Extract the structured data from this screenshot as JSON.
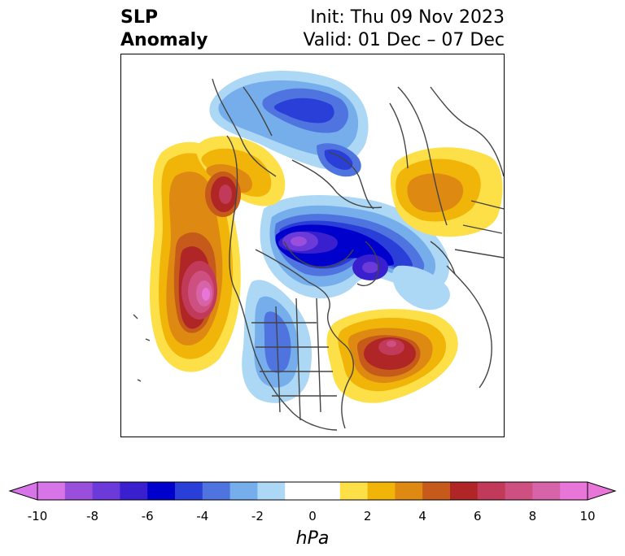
{
  "title": {
    "left_line1": "SLP",
    "left_line2": "Anomaly",
    "right_line1": "Init: Thu 09 Nov 2023",
    "right_line2": "Valid: 01 Dec – 07 Dec"
  },
  "colorbar": {
    "units": "hPa",
    "ticks": [
      "-10",
      "-8",
      "-6",
      "-4",
      "-2",
      "0",
      "2",
      "4",
      "6",
      "8",
      "10"
    ],
    "colors": [
      "#d775e8",
      "#9a4fdc",
      "#6b3ad8",
      "#3a1fcf",
      "#0000cc",
      "#2a3ed8",
      "#4f74e0",
      "#76aeec",
      "#acd8f6",
      "#ffffff",
      "#ffffff",
      "#fde047",
      "#f1b409",
      "#de8a12",
      "#c65a1a",
      "#b02626",
      "#c23a5a",
      "#ce5080",
      "#d764a8",
      "#e875d8"
    ],
    "under_color": "#d775e8",
    "over_color": "#e875d8"
  },
  "map": {
    "features": [
      {
        "name": "low-anomaly-arctic-center",
        "level": "-8 to -10"
      },
      {
        "name": "low-anomaly-north-atlantic",
        "level": "-2 to -6"
      },
      {
        "name": "low-anomaly-north-america",
        "level": "-2 to -4"
      },
      {
        "name": "high-anomaly-north-pacific",
        "level": "8 to 10"
      },
      {
        "name": "high-anomaly-alaska",
        "level": "6"
      },
      {
        "name": "high-anomaly-east-canada-atlantic",
        "level": "6 to 8"
      },
      {
        "name": "high-anomaly-europe",
        "level": "2 to 4"
      }
    ]
  }
}
